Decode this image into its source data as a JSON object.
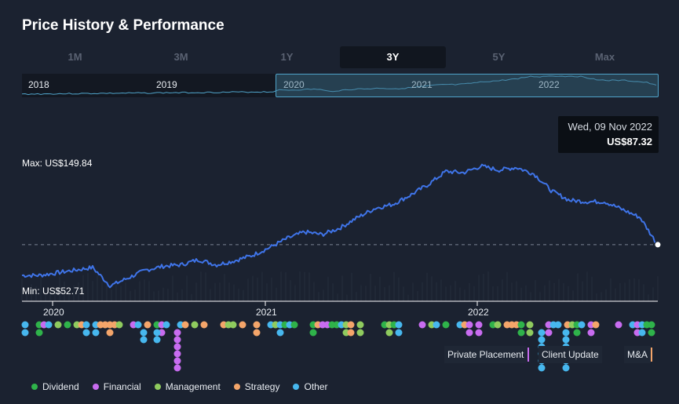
{
  "title": "Price History & Performance",
  "range_tabs": [
    "1M",
    "3M",
    "1Y",
    "3Y",
    "5Y",
    "Max"
  ],
  "active_range": "3Y",
  "navigator": {
    "years": [
      "2018",
      "2019",
      "2020",
      "2021",
      "2022"
    ]
  },
  "tooltip": {
    "date": "Wed, 09 Nov 2022",
    "price": "US$87.32"
  },
  "max_label": "Max: US$149.84",
  "min_label": "Min: US$52.71",
  "event_tags": [
    "Private Placement",
    "Client Update",
    "M&A"
  ],
  "legend": [
    {
      "label": "Dividend",
      "color": "#2fb34a"
    },
    {
      "label": "Financial",
      "color": "#c86cf0"
    },
    {
      "label": "Management",
      "color": "#8fcb5e"
    },
    {
      "label": "Strategy",
      "color": "#f4a56a"
    },
    {
      "label": "Other",
      "color": "#47b7ee"
    }
  ],
  "chart_data": {
    "type": "line",
    "x_tick_labels": [
      "2020",
      "2021",
      "2022"
    ],
    "ylim": [
      52.71,
      149.84
    ],
    "current_price": 87.32,
    "x": [
      "2019-11",
      "2019-12",
      "2020-01",
      "2020-02",
      "2020-03",
      "2020-04",
      "2020-05",
      "2020-06",
      "2020-07",
      "2020-08",
      "2020-09",
      "2020-10",
      "2020-11",
      "2020-12",
      "2021-01",
      "2021-02",
      "2021-03",
      "2021-04",
      "2021-05",
      "2021-06",
      "2021-07",
      "2021-08",
      "2021-09",
      "2021-10",
      "2021-11",
      "2021-12",
      "2022-01",
      "2022-02",
      "2022-03",
      "2022-04",
      "2022-05",
      "2022-06",
      "2022-07",
      "2022-08",
      "2022-09",
      "2022-10",
      "2022-11"
    ],
    "series": [
      {
        "values": [
          64,
          64,
          66,
          68,
          70,
          56,
          62,
          68,
          71,
          72,
          76,
          72,
          75,
          79,
          85,
          92,
          97,
          95,
          100,
          108,
          115,
          118,
          125,
          133,
          143,
          142,
          147,
          144,
          146,
          141,
          128,
          121,
          120,
          120,
          114,
          108,
          87
        ]
      }
    ]
  }
}
